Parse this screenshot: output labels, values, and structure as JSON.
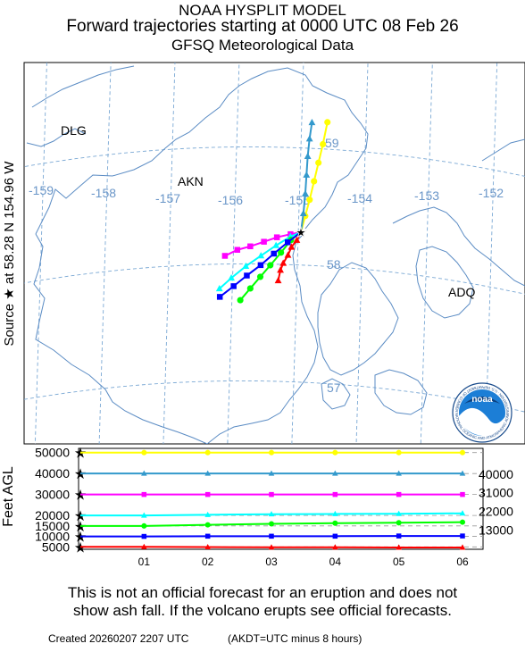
{
  "header": {
    "model": "NOAA HYSPLIT MODEL",
    "title": "Forward trajectories starting at 0000 UTC 08 Feb 26",
    "subtitle": "GFSQ Meteorological Data"
  },
  "source_label": "Source ★ at 58.28 N 154.96 W",
  "map": {
    "place_labels": [
      "DLG",
      "AKN",
      "ADQ"
    ],
    "lon_labels": [
      "-159",
      "-158",
      "-157",
      "-156",
      "-155",
      "-154",
      "-153",
      "-152"
    ],
    "lat_labels": [
      "59",
      "58",
      "57"
    ],
    "logo_text": "noaa",
    "logo_ring_text": "NATIONAL OCEANIC AND ATMOSPHERIC ADMINISTRATION · U.S. DEPARTMENT OF COMMERCE"
  },
  "chart_data": {
    "type": "line",
    "source": {
      "lat": 58.28,
      "lon": -154.96
    },
    "time_ticks": [
      "01",
      "02",
      "03",
      "04",
      "05",
      "06"
    ],
    "height_axis": {
      "ylabel": "Feet AGL",
      "left_ticks": [
        "50000",
        "40000",
        "30000",
        "20000",
        "15000",
        "10000",
        "5000"
      ],
      "right_ticks": [
        "40000",
        "31000",
        "22000",
        "13000"
      ]
    },
    "series": [
      {
        "color": "#ffff00",
        "marker": "circle",
        "start_ft": 50000,
        "heights_ft": [
          50000,
          50000,
          50000,
          50000,
          50000,
          50000,
          50000
        ],
        "track": [
          [
            -154.96,
            58.28
          ],
          [
            -154.9,
            58.42
          ],
          [
            -154.84,
            58.56
          ],
          [
            -154.78,
            58.72
          ],
          [
            -154.72,
            58.88
          ],
          [
            -154.66,
            59.04
          ],
          [
            -154.6,
            59.23
          ]
        ]
      },
      {
        "color": "#3399cc",
        "marker": "triangle",
        "start_ft": 40000,
        "heights_ft": [
          40000,
          40000,
          40000,
          40000,
          40000,
          40000,
          40000
        ],
        "track": [
          [
            -154.96,
            58.28
          ],
          [
            -154.93,
            58.44
          ],
          [
            -154.91,
            58.61
          ],
          [
            -154.9,
            58.77
          ],
          [
            -154.89,
            58.93
          ],
          [
            -154.87,
            59.08
          ],
          [
            -154.84,
            59.22
          ]
        ]
      },
      {
        "color": "#ff00ff",
        "marker": "square",
        "start_ft": 30000,
        "heights_ft": [
          30000,
          30000,
          30000,
          30000,
          30000,
          30000,
          30000
        ],
        "track": [
          [
            -154.96,
            58.28
          ],
          [
            -155.12,
            58.26
          ],
          [
            -155.33,
            58.23
          ],
          [
            -155.53,
            58.19
          ],
          [
            -155.74,
            58.15
          ],
          [
            -155.94,
            58.12
          ],
          [
            -156.13,
            58.07
          ]
        ]
      },
      {
        "color": "#00ffff",
        "marker": "triangle",
        "start_ft": 20000,
        "heights_ft": [
          20000,
          20000,
          20300,
          20600,
          20700,
          20800,
          21000
        ],
        "track": [
          [
            -154.96,
            58.28
          ],
          [
            -155.12,
            58.24
          ],
          [
            -155.34,
            58.16
          ],
          [
            -155.57,
            58.07
          ],
          [
            -155.8,
            57.98
          ],
          [
            -156.02,
            57.88
          ],
          [
            -156.2,
            57.79
          ]
        ]
      },
      {
        "color": "#00ff00",
        "marker": "circle",
        "start_ft": 15000,
        "heights_ft": [
          15000,
          15000,
          15500,
          16000,
          16300,
          16500,
          16800
        ],
        "track": [
          [
            -154.96,
            58.28
          ],
          [
            -155.11,
            58.21
          ],
          [
            -155.26,
            58.1
          ],
          [
            -155.42,
            57.99
          ],
          [
            -155.57,
            57.89
          ],
          [
            -155.72,
            57.79
          ],
          [
            -155.87,
            57.69
          ]
        ]
      },
      {
        "color": "#0000ff",
        "marker": "square",
        "start_ft": 10000,
        "heights_ft": [
          10000,
          10000,
          10100,
          10100,
          10100,
          10200,
          10200
        ],
        "track": [
          [
            -154.96,
            58.28
          ],
          [
            -155.16,
            58.19
          ],
          [
            -155.37,
            58.09
          ],
          [
            -155.57,
            57.99
          ],
          [
            -155.78,
            57.9
          ],
          [
            -155.98,
            57.81
          ],
          [
            -156.19,
            57.72
          ]
        ]
      },
      {
        "color": "#ff0000",
        "marker": "triangle",
        "start_ft": 5000,
        "heights_ft": [
          5000,
          5000,
          4900,
          4800,
          4800,
          4700,
          4700
        ],
        "track": [
          [
            -154.96,
            58.28
          ],
          [
            -155.02,
            58.21
          ],
          [
            -155.1,
            58.15
          ],
          [
            -155.15,
            58.08
          ],
          [
            -155.22,
            58.01
          ],
          [
            -155.26,
            57.95
          ],
          [
            -155.29,
            57.86
          ]
        ]
      }
    ]
  },
  "disclaimer": {
    "line1": "This is not an official forecast for an eruption and does not",
    "line2": "show ash fall. If the volcano erupts see official forecasts."
  },
  "footer": {
    "created": "Created 20260207 2207 UTC",
    "tz_note": "(AKDT=UTC minus 8 hours)"
  }
}
